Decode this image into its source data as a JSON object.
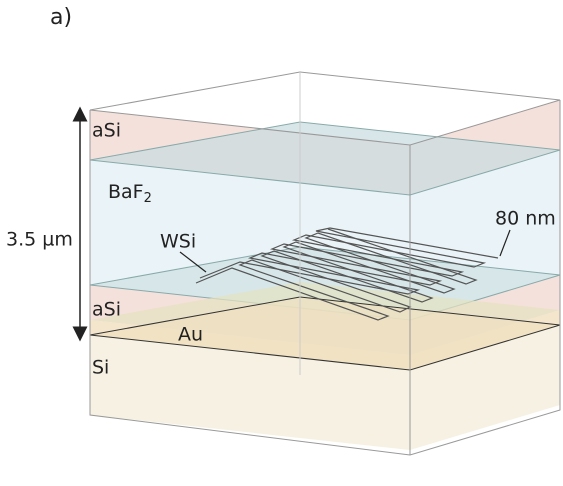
{
  "panel_label": "a)",
  "layers": [
    {
      "label": "aSi"
    },
    {
      "label": "BaF",
      "subscript": "2"
    },
    {
      "label": "aSi"
    },
    {
      "label": "Au"
    },
    {
      "label": "Si"
    }
  ],
  "annotations": {
    "wire": "WSi",
    "width": "80 nm",
    "thickness": "3.5 µm"
  }
}
